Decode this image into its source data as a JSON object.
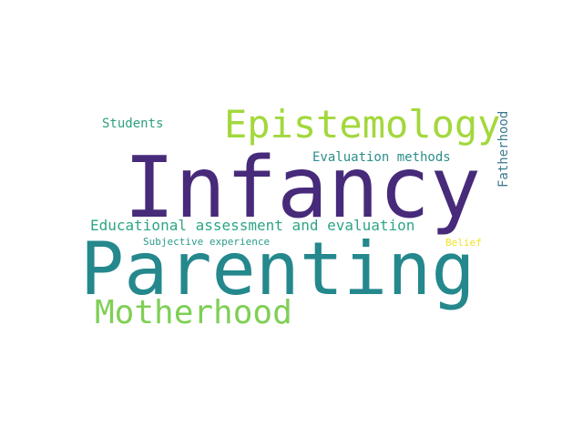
{
  "words": {
    "infancy": {
      "text": "Infancy",
      "color": "#472a7a"
    },
    "parenting": {
      "text": "Parenting",
      "color": "#24888d"
    },
    "epistemology": {
      "text": "Epistemology",
      "color": "#a2d83c"
    },
    "motherhood": {
      "text": "Motherhood",
      "color": "#7fcf55"
    },
    "educational": {
      "text": "Educational assessment and evaluation",
      "color": "#2fa586"
    },
    "evaluation": {
      "text": "Evaluation methods",
      "color": "#2a8e8a"
    },
    "students": {
      "text": "Students",
      "color": "#2fa07f"
    },
    "subjective": {
      "text": "Subjective experience",
      "color": "#2c9a8a"
    },
    "belief": {
      "text": "Belief",
      "color": "#f0e226"
    },
    "fatherhood": {
      "text": "Fatherhood",
      "color": "#3b7c8e"
    }
  }
}
